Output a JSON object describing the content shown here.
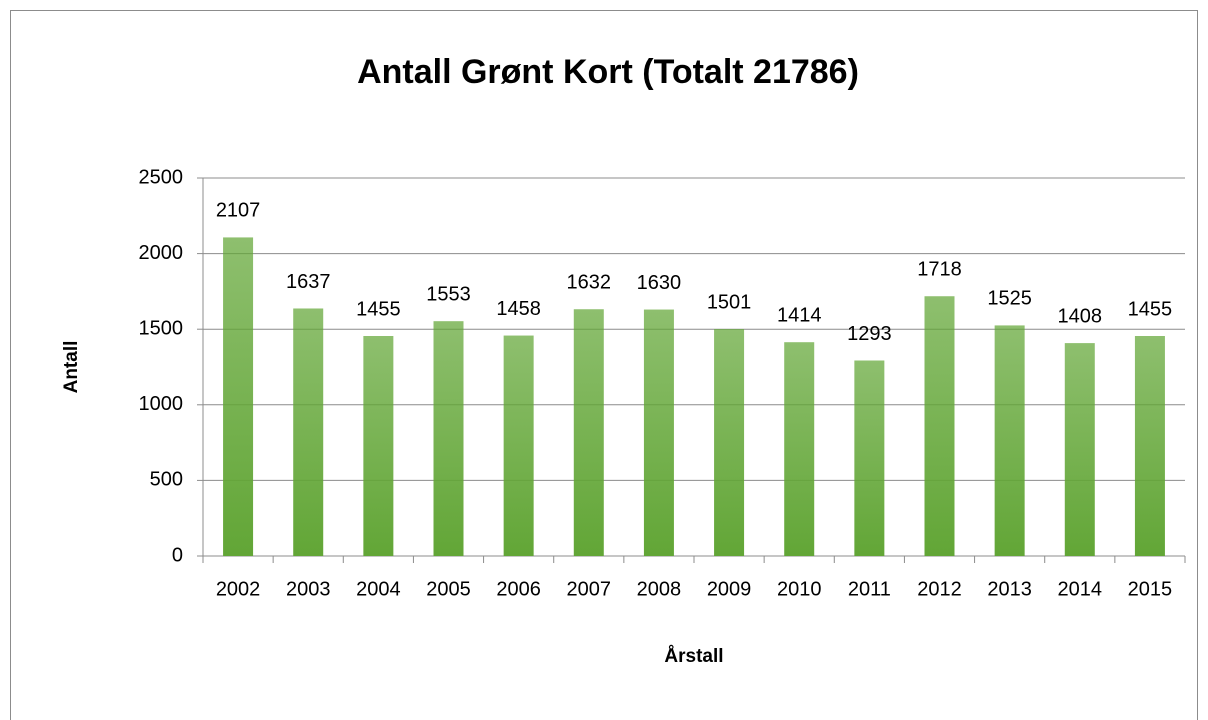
{
  "chart_data": {
    "type": "bar",
    "title": "Antall Grønt Kort (Totalt 21786)",
    "x_label": "Årstall",
    "y_label": "Antall",
    "categories": [
      "2002",
      "2003",
      "2004",
      "2005",
      "2006",
      "2007",
      "2008",
      "2009",
      "2010",
      "2011",
      "2012",
      "2013",
      "2014",
      "2015"
    ],
    "values": [
      2107,
      1637,
      1455,
      1553,
      1458,
      1632,
      1630,
      1501,
      1414,
      1293,
      1718,
      1525,
      1408,
      1455
    ],
    "color": "#62a636",
    "ylim": [
      0,
      2500
    ],
    "yticks": [
      0,
      500,
      1000,
      1500,
      2000,
      2500
    ],
    "grid": true
  }
}
